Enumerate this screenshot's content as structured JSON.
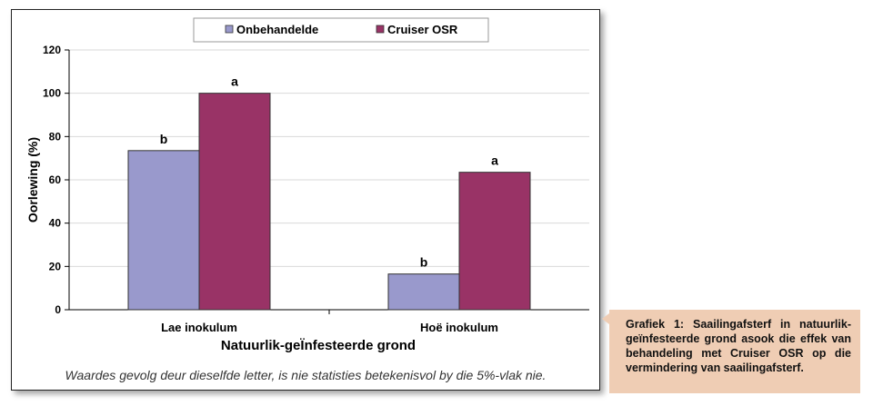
{
  "chart_data": {
    "type": "bar",
    "categories": [
      "Lae inokulum",
      "Hoë inokulum"
    ],
    "series": [
      {
        "name": "Onbehandelde",
        "values": [
          73.5,
          16.5
        ],
        "letters": [
          "b",
          "b"
        ],
        "color": "#9999cc"
      },
      {
        "name": "Cruiser OSR",
        "values": [
          100,
          63.5
        ],
        "letters": [
          "a",
          "a"
        ],
        "color": "#993366"
      }
    ],
    "xlabel": "Natuurlik-geÏnfesteerde grond",
    "ylabel": "Oorlewing (%)",
    "ylim": [
      0,
      120
    ],
    "yticks": [
      0,
      20,
      40,
      60,
      80,
      100,
      120
    ],
    "grid": true,
    "legend": "top"
  },
  "note": "Waardes gevolg deur dieselfde letter, is nie statisties betekenisvol by die 5%-vlak nie.",
  "caption": "Grafiek 1: Saailingafsterf in natuurlik-geïnfesteerde grond asook die effek van behandeling met Cruiser OSR op die vermindering van saailingafsterf."
}
